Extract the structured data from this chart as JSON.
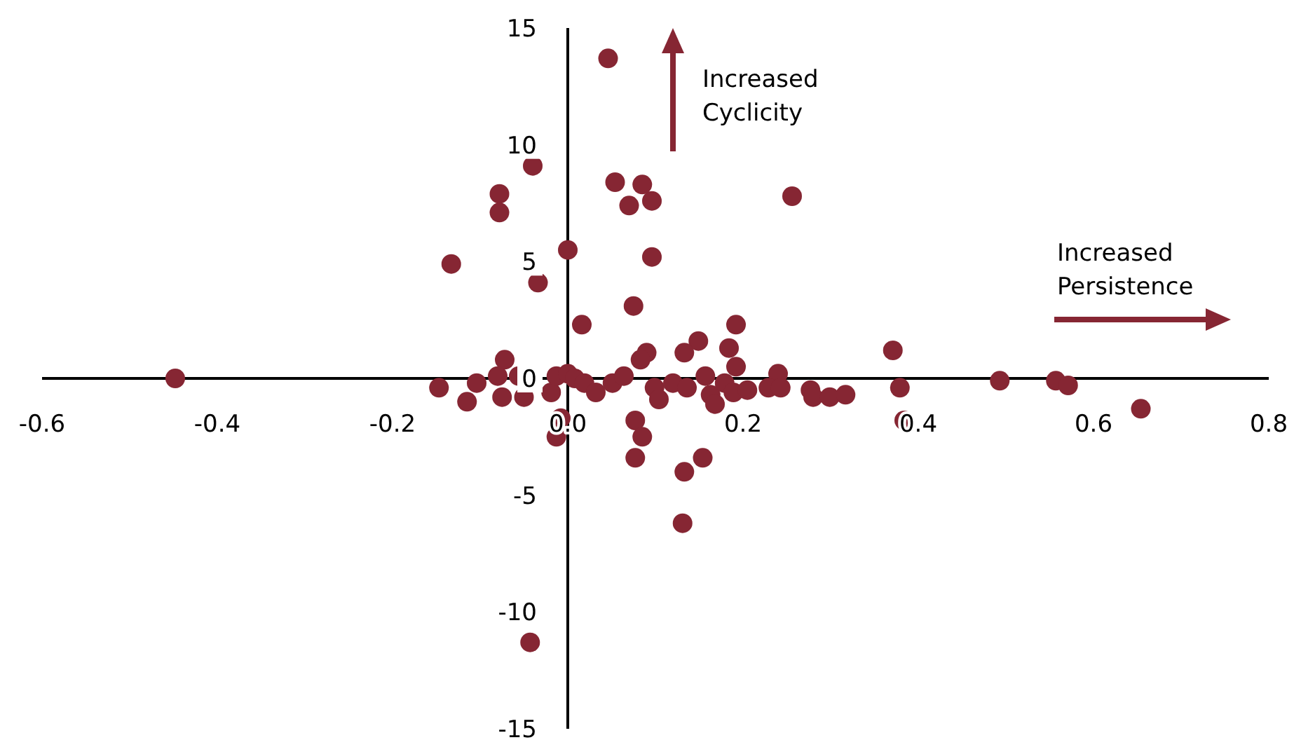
{
  "chart_data": {
    "type": "scatter",
    "marker": "circle",
    "grid": false,
    "annotations": [
      "Increased Cyclicity",
      "Increased Persistence"
    ],
    "xlim": [
      -0.6,
      0.8
    ],
    "ylim": [
      -15,
      15
    ],
    "xticks": [
      -0.6,
      -0.4,
      -0.2,
      {
        "value": 0,
        "label": "0.0"
      },
      0.2,
      0.4,
      0.6,
      0.8
    ],
    "yticks": [
      -15,
      -10,
      -5,
      0,
      5,
      10,
      15
    ],
    "series": [
      {
        "color": "#862633",
        "x": [
          -0.448,
          0.046,
          -0.04,
          -0.078,
          -0.078,
          -0.133,
          -0.034,
          0,
          0.054,
          0.085,
          0.07,
          0.096,
          0.256,
          0.096,
          0.075,
          0.016,
          0.192,
          0.149,
          0.133,
          0.184,
          0.09,
          0.083,
          -0.072,
          0.24,
          0.192,
          -0.147,
          -0.115,
          -0.104,
          -0.08,
          -0.075,
          -0.056,
          -0.05,
          -0.019,
          -0.013,
          0,
          0.008,
          0.019,
          0.032,
          0.051,
          0.064,
          -0.008,
          -0.013,
          0.077,
          0.085,
          0.077,
          0.133,
          0.154,
          0.131,
          0.099,
          0.104,
          0.12,
          0.136,
          0.157,
          0.163,
          0.168,
          0.179,
          0.189,
          0.205,
          0.229,
          0.243,
          0.277,
          0.28,
          0.299,
          0.317,
          0.371,
          0.379,
          0.384,
          0.493,
          0.557,
          0.571,
          0.654,
          -0.043
        ],
        "values": [
          0,
          13.7,
          9.1,
          7.9,
          7.1,
          4.9,
          4.1,
          5.5,
          8.4,
          8.3,
          7.4,
          7.6,
          7.8,
          5.2,
          3.1,
          2.3,
          2.3,
          1.6,
          1.1,
          1.3,
          1.1,
          0.8,
          0.8,
          0.2,
          0.5,
          -0.4,
          -1,
          -0.2,
          0.1,
          -0.8,
          0.1,
          -0.8,
          -0.6,
          0.1,
          0.2,
          0,
          -0.2,
          -0.6,
          -0.2,
          0.1,
          -1.7,
          -2.5,
          -1.8,
          -2.5,
          -3.4,
          -4,
          -3.4,
          -6.2,
          -0.4,
          -0.9,
          -0.2,
          -0.4,
          0.1,
          -0.7,
          -1.1,
          -0.2,
          -0.6,
          -0.5,
          -0.4,
          -0.4,
          -0.5,
          -0.8,
          -0.8,
          -0.7,
          1.2,
          -0.4,
          -1.8,
          -0.1,
          -0.1,
          -0.3,
          -1.3,
          -11.3
        ]
      }
    ]
  }
}
